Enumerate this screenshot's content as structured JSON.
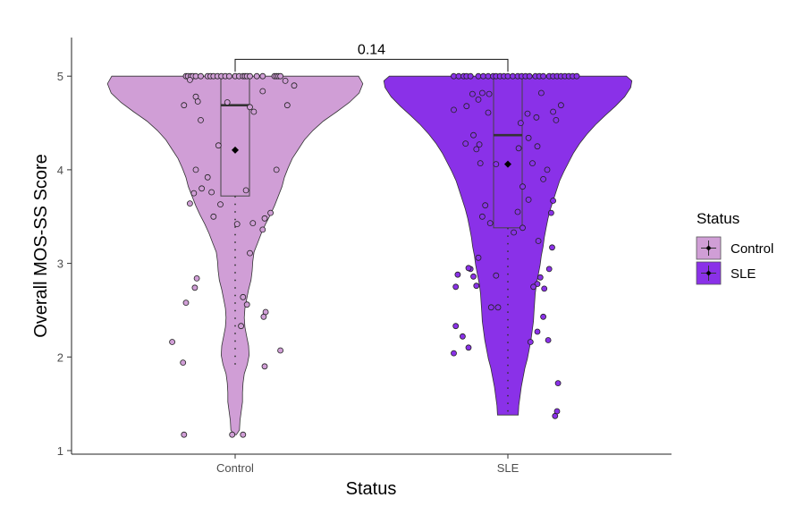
{
  "chart_data": {
    "type": "violin",
    "xlabel": "Status",
    "ylabel": "Overall MOS-SS Score",
    "categories": [
      "Control",
      "SLE"
    ],
    "ylim": [
      0.95,
      5.4
    ],
    "yticks": [
      1,
      2,
      3,
      4,
      5
    ],
    "grid": false,
    "legend": {
      "title": "Status",
      "position": "right",
      "entries": [
        "Control",
        "SLE"
      ]
    },
    "comparison": {
      "groups": [
        "Control",
        "SLE"
      ],
      "p_label": "0.14",
      "y": 5.18
    },
    "colors": {
      "Control": "#D09ED6",
      "SLE": "#8A31E8",
      "outline": "#333333"
    },
    "series": [
      {
        "name": "Control",
        "box": {
          "q1": 3.72,
          "median": 4.69,
          "q3": 5.0,
          "mean": 4.21
        },
        "whisker_low": 1.9,
        "violin": [
          [
            1.17,
            0.02
          ],
          [
            1.22,
            0.07
          ],
          [
            1.32,
            0.08
          ],
          [
            1.42,
            0.1
          ],
          [
            1.52,
            0.12
          ],
          [
            1.62,
            0.12
          ],
          [
            1.72,
            0.13
          ],
          [
            1.82,
            0.15
          ],
          [
            1.92,
            0.2
          ],
          [
            2.02,
            0.23
          ],
          [
            2.12,
            0.22
          ],
          [
            2.22,
            0.19
          ],
          [
            2.32,
            0.16
          ],
          [
            2.42,
            0.15
          ],
          [
            2.52,
            0.16
          ],
          [
            2.62,
            0.19
          ],
          [
            2.72,
            0.22
          ],
          [
            2.82,
            0.26
          ],
          [
            2.92,
            0.28
          ],
          [
            3.02,
            0.29
          ],
          [
            3.12,
            0.31
          ],
          [
            3.22,
            0.37
          ],
          [
            3.32,
            0.43
          ],
          [
            3.42,
            0.5
          ],
          [
            3.52,
            0.58
          ],
          [
            3.62,
            0.65
          ],
          [
            3.72,
            0.71
          ],
          [
            3.82,
            0.77
          ],
          [
            3.92,
            0.81
          ],
          [
            4.02,
            0.87
          ],
          [
            4.12,
            0.94
          ],
          [
            4.22,
            1.04
          ],
          [
            4.32,
            1.14
          ],
          [
            4.42,
            1.28
          ],
          [
            4.52,
            1.45
          ],
          [
            4.62,
            1.67
          ],
          [
            4.72,
            1.88
          ],
          [
            4.82,
            2.04
          ],
          [
            4.92,
            2.1
          ],
          [
            5.0,
            2.03
          ]
        ],
        "points": [
          [
            -0.5,
            5.0
          ],
          [
            -0.48,
            5.0
          ],
          [
            -0.45,
            5.0
          ],
          [
            -0.43,
            5.0
          ],
          [
            -0.4,
            5.0
          ],
          [
            -0.35,
            5.0
          ],
          [
            -0.28,
            5.0
          ],
          [
            -0.25,
            5.0
          ],
          [
            -0.22,
            5.0
          ],
          [
            -0.18,
            5.0
          ],
          [
            -0.14,
            5.0
          ],
          [
            -0.1,
            5.0
          ],
          [
            -0.06,
            5.0
          ],
          [
            0.0,
            5.0
          ],
          [
            0.04,
            5.0
          ],
          [
            0.08,
            5.0
          ],
          [
            0.1,
            5.0
          ],
          [
            0.12,
            5.0
          ],
          [
            0.15,
            5.0
          ],
          [
            0.22,
            5.0
          ],
          [
            0.28,
            5.0
          ],
          [
            0.4,
            5.0
          ],
          [
            0.42,
            5.0
          ],
          [
            0.44,
            5.0
          ],
          [
            0.46,
            5.0
          ],
          [
            0.6,
            4.9
          ],
          [
            0.51,
            4.95
          ],
          [
            -0.46,
            4.96
          ],
          [
            -0.4,
            4.78
          ],
          [
            -0.38,
            4.73
          ],
          [
            -0.52,
            4.69
          ],
          [
            -0.08,
            4.72
          ],
          [
            0.15,
            4.67
          ],
          [
            0.19,
            4.62
          ],
          [
            0.53,
            4.69
          ],
          [
            0.28,
            4.84
          ],
          [
            -0.35,
            4.53
          ],
          [
            -0.17,
            4.26
          ],
          [
            -0.4,
            4.0
          ],
          [
            -0.28,
            3.92
          ],
          [
            -0.24,
            3.76
          ],
          [
            -0.34,
            3.8
          ],
          [
            -0.15,
            3.63
          ],
          [
            -0.22,
            3.5
          ],
          [
            0.11,
            3.78
          ],
          [
            0.42,
            4.0
          ],
          [
            0.36,
            3.54
          ],
          [
            0.3,
            3.48
          ],
          [
            0.28,
            3.36
          ],
          [
            0.18,
            3.43
          ],
          [
            0.02,
            3.42
          ],
          [
            -0.46,
            3.64
          ],
          [
            -0.42,
            3.75
          ],
          [
            0.15,
            3.11
          ],
          [
            -0.39,
            2.84
          ],
          [
            -0.41,
            2.74
          ],
          [
            -0.5,
            2.58
          ],
          [
            0.08,
            2.64
          ],
          [
            0.12,
            2.56
          ],
          [
            0.31,
            2.48
          ],
          [
            0.29,
            2.43
          ],
          [
            0.06,
            2.33
          ],
          [
            -0.64,
            2.16
          ],
          [
            0.46,
            2.07
          ],
          [
            0.3,
            1.9
          ],
          [
            -0.53,
            1.94
          ],
          [
            -0.52,
            1.17
          ],
          [
            -0.03,
            1.17
          ],
          [
            0.08,
            1.17
          ]
        ]
      },
      {
        "name": "SLE",
        "box": {
          "q1": 3.38,
          "median": 4.37,
          "q3": 5.0,
          "mean": 4.06
        },
        "whisker_low": 1.38,
        "violin": [
          [
            1.38,
            0.17
          ],
          [
            1.48,
            0.18
          ],
          [
            1.58,
            0.2
          ],
          [
            1.68,
            0.22
          ],
          [
            1.78,
            0.25
          ],
          [
            1.88,
            0.28
          ],
          [
            1.98,
            0.32
          ],
          [
            2.08,
            0.35
          ],
          [
            2.18,
            0.38
          ],
          [
            2.28,
            0.4
          ],
          [
            2.38,
            0.42
          ],
          [
            2.48,
            0.43
          ],
          [
            2.58,
            0.44
          ],
          [
            2.68,
            0.45
          ],
          [
            2.78,
            0.47
          ],
          [
            2.88,
            0.5
          ],
          [
            2.98,
            0.53
          ],
          [
            3.08,
            0.55
          ],
          [
            3.18,
            0.58
          ],
          [
            3.28,
            0.6
          ],
          [
            3.38,
            0.63
          ],
          [
            3.48,
            0.66
          ],
          [
            3.58,
            0.7
          ],
          [
            3.68,
            0.75
          ],
          [
            3.78,
            0.8
          ],
          [
            3.88,
            0.85
          ],
          [
            3.98,
            0.92
          ],
          [
            4.08,
            1.0
          ],
          [
            4.18,
            1.08
          ],
          [
            4.28,
            1.18
          ],
          [
            4.38,
            1.3
          ],
          [
            4.48,
            1.44
          ],
          [
            4.58,
            1.6
          ],
          [
            4.68,
            1.77
          ],
          [
            4.78,
            1.92
          ],
          [
            4.88,
            2.02
          ],
          [
            4.95,
            2.04
          ],
          [
            5.0,
            1.95
          ]
        ],
        "points": [
          [
            -0.55,
            5.0
          ],
          [
            -0.5,
            5.0
          ],
          [
            -0.45,
            5.0
          ],
          [
            -0.42,
            5.0
          ],
          [
            -0.38,
            5.0
          ],
          [
            -0.3,
            5.0
          ],
          [
            -0.25,
            5.0
          ],
          [
            -0.2,
            5.0
          ],
          [
            -0.15,
            5.0
          ],
          [
            -0.12,
            5.0
          ],
          [
            -0.08,
            5.0
          ],
          [
            -0.04,
            5.0
          ],
          [
            0.0,
            5.0
          ],
          [
            0.05,
            5.0
          ],
          [
            0.1,
            5.0
          ],
          [
            0.14,
            5.0
          ],
          [
            0.18,
            5.0
          ],
          [
            0.22,
            5.0
          ],
          [
            0.28,
            5.0
          ],
          [
            0.32,
            5.0
          ],
          [
            0.36,
            5.0
          ],
          [
            0.42,
            5.0
          ],
          [
            0.46,
            5.0
          ],
          [
            0.5,
            5.0
          ],
          [
            0.54,
            5.0
          ],
          [
            0.58,
            5.0
          ],
          [
            0.62,
            5.0
          ],
          [
            0.66,
            5.0
          ],
          [
            0.7,
            5.0
          ],
          [
            -0.36,
            4.81
          ],
          [
            -0.26,
            4.82
          ],
          [
            -0.19,
            4.81
          ],
          [
            -0.55,
            4.64
          ],
          [
            -0.42,
            4.68
          ],
          [
            -0.3,
            4.75
          ],
          [
            -0.2,
            4.61
          ],
          [
            -0.35,
            4.37
          ],
          [
            -0.29,
            4.27
          ],
          [
            -0.32,
            4.22
          ],
          [
            -0.43,
            4.28
          ],
          [
            -0.28,
            4.07
          ],
          [
            -0.12,
            4.06
          ],
          [
            0.13,
            4.5
          ],
          [
            0.2,
            4.6
          ],
          [
            0.29,
            4.56
          ],
          [
            0.34,
            4.82
          ],
          [
            0.46,
            4.62
          ],
          [
            0.49,
            4.53
          ],
          [
            0.54,
            4.69
          ],
          [
            0.3,
            4.25
          ],
          [
            0.21,
            4.34
          ],
          [
            0.11,
            4.23
          ],
          [
            0.25,
            4.07
          ],
          [
            0.36,
            3.9
          ],
          [
            0.15,
            3.82
          ],
          [
            0.21,
            3.68
          ],
          [
            0.1,
            3.55
          ],
          [
            0.4,
            4.0
          ],
          [
            0.46,
            3.67
          ],
          [
            0.44,
            3.54
          ],
          [
            -0.23,
            3.62
          ],
          [
            -0.18,
            3.43
          ],
          [
            -0.26,
            3.5
          ],
          [
            -0.3,
            3.06
          ],
          [
            -0.35,
            2.86
          ],
          [
            -0.38,
            2.94
          ],
          [
            -0.51,
            2.88
          ],
          [
            -0.53,
            2.75
          ],
          [
            -0.4,
            2.95
          ],
          [
            -0.32,
            2.76
          ],
          [
            -0.12,
            2.87
          ],
          [
            -0.17,
            2.53
          ],
          [
            -0.1,
            2.53
          ],
          [
            0.06,
            3.33
          ],
          [
            0.15,
            3.38
          ],
          [
            0.31,
            3.24
          ],
          [
            0.45,
            3.17
          ],
          [
            0.42,
            2.94
          ],
          [
            0.37,
            2.73
          ],
          [
            0.33,
            2.85
          ],
          [
            0.3,
            2.78
          ],
          [
            0.26,
            2.75
          ],
          [
            0.36,
            2.43
          ],
          [
            0.3,
            2.27
          ],
          [
            0.23,
            2.16
          ],
          [
            0.41,
            2.18
          ],
          [
            -0.46,
            2.22
          ],
          [
            -0.53,
            2.33
          ],
          [
            -0.55,
            2.04
          ],
          [
            -0.4,
            2.1
          ],
          [
            0.51,
            1.72
          ],
          [
            0.5,
            1.42
          ],
          [
            0.48,
            1.37
          ]
        ]
      }
    ]
  }
}
